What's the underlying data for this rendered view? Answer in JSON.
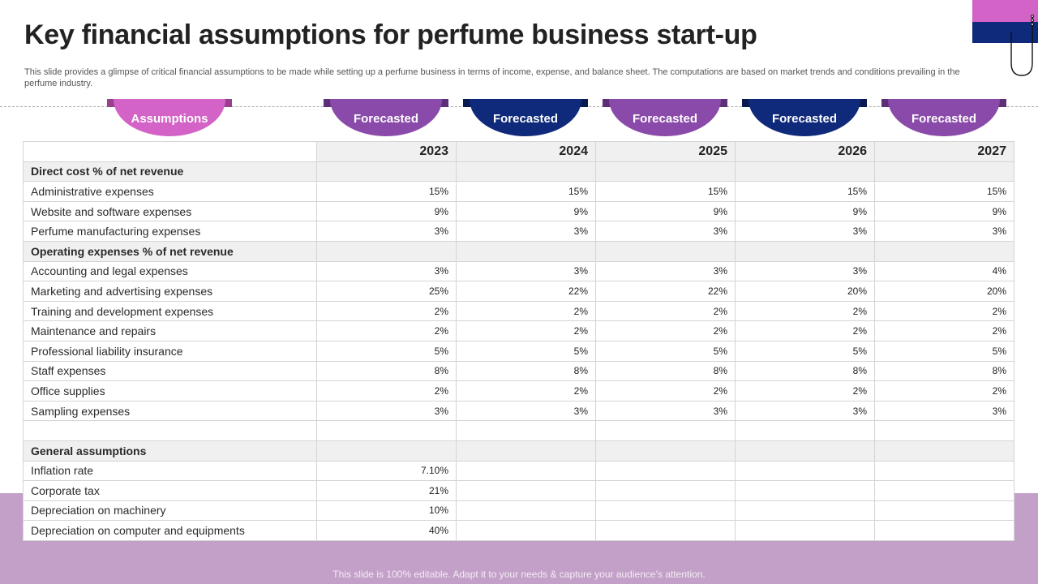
{
  "slide": {
    "title": "Key financial assumptions for perfume business start-up",
    "subtitle": "This slide provides a glimpse of critical financial assumptions to be made while setting up a perfume business in terms of income, expense, and balance sheet. The computations are based on market trends and conditions prevailing in the perfume industry.",
    "footer": "This slide is 100% editable. Adapt it to your needs & capture your audience’s attention."
  },
  "tabs": [
    {
      "label": "Assumptions",
      "color": "#d363c6",
      "band": "#9a3e8e"
    },
    {
      "label": "Forecasted",
      "color": "#8a4aa9",
      "band": "#5c2f78"
    },
    {
      "label": "Forecasted",
      "color": "#0f2a7a",
      "band": "#091a50"
    },
    {
      "label": "Forecasted",
      "color": "#8a4aa9",
      "band": "#5c2f78"
    },
    {
      "label": "Forecasted",
      "color": "#0f2a7a",
      "band": "#091a50"
    },
    {
      "label": "Forecasted",
      "color": "#8a4aa9",
      "band": "#5c2f78"
    }
  ],
  "table": {
    "years": [
      "2023",
      "2024",
      "2025",
      "2026",
      "2027"
    ],
    "rows": [
      {
        "label": "Direct cost % of net revenue",
        "section": true,
        "values": [
          "",
          "",
          "",
          "",
          ""
        ]
      },
      {
        "label": "Administrative expenses",
        "values": [
          "15%",
          "15%",
          "15%",
          "15%",
          "15%"
        ]
      },
      {
        "label": "Website and software expenses",
        "values": [
          "9%",
          "9%",
          "9%",
          "9%",
          "9%"
        ]
      },
      {
        "label": "Perfume manufacturing expenses",
        "values": [
          "3%",
          "3%",
          "3%",
          "3%",
          "3%"
        ]
      },
      {
        "label": "Operating expenses % of net revenue",
        "section": true,
        "values": [
          "",
          "",
          "",
          "",
          ""
        ]
      },
      {
        "label": "Accounting and legal expenses",
        "values": [
          "3%",
          "3%",
          "3%",
          "3%",
          "4%"
        ]
      },
      {
        "label": "Marketing and advertising expenses",
        "values": [
          "25%",
          "22%",
          "22%",
          "20%",
          "20%"
        ]
      },
      {
        "label": "Training and development expenses",
        "values": [
          "2%",
          "2%",
          "2%",
          "2%",
          "2%"
        ]
      },
      {
        "label": "Maintenance and repairs",
        "values": [
          "2%",
          "2%",
          "2%",
          "2%",
          "2%"
        ]
      },
      {
        "label": "Professional liability insurance",
        "values": [
          "5%",
          "5%",
          "5%",
          "5%",
          "5%"
        ]
      },
      {
        "label": "Staff expenses",
        "values": [
          "8%",
          "8%",
          "8%",
          "8%",
          "8%"
        ]
      },
      {
        "label": "Office supplies",
        "values": [
          "2%",
          "2%",
          "2%",
          "2%",
          "2%"
        ]
      },
      {
        "label": "Sampling expenses",
        "values": [
          "3%",
          "3%",
          "3%",
          "3%",
          "3%"
        ]
      },
      {
        "label": "",
        "values": [
          "",
          "",
          "",
          "",
          ""
        ]
      },
      {
        "label": "General assumptions",
        "section": true,
        "values": [
          "",
          "",
          "",
          "",
          ""
        ]
      },
      {
        "label": "Inflation rate",
        "values": [
          "7.10%",
          "",
          "",
          "",
          ""
        ]
      },
      {
        "label": "Corporate tax",
        "values": [
          "21%",
          "",
          "",
          "",
          ""
        ]
      },
      {
        "label": "Depreciation on machinery",
        "values": [
          "10%",
          "",
          "",
          "",
          ""
        ]
      },
      {
        "label": "Depreciation on computer and equipments",
        "values": [
          "40%",
          "",
          "",
          "",
          ""
        ]
      }
    ]
  },
  "icons": {
    "decor": "hook-icon"
  }
}
